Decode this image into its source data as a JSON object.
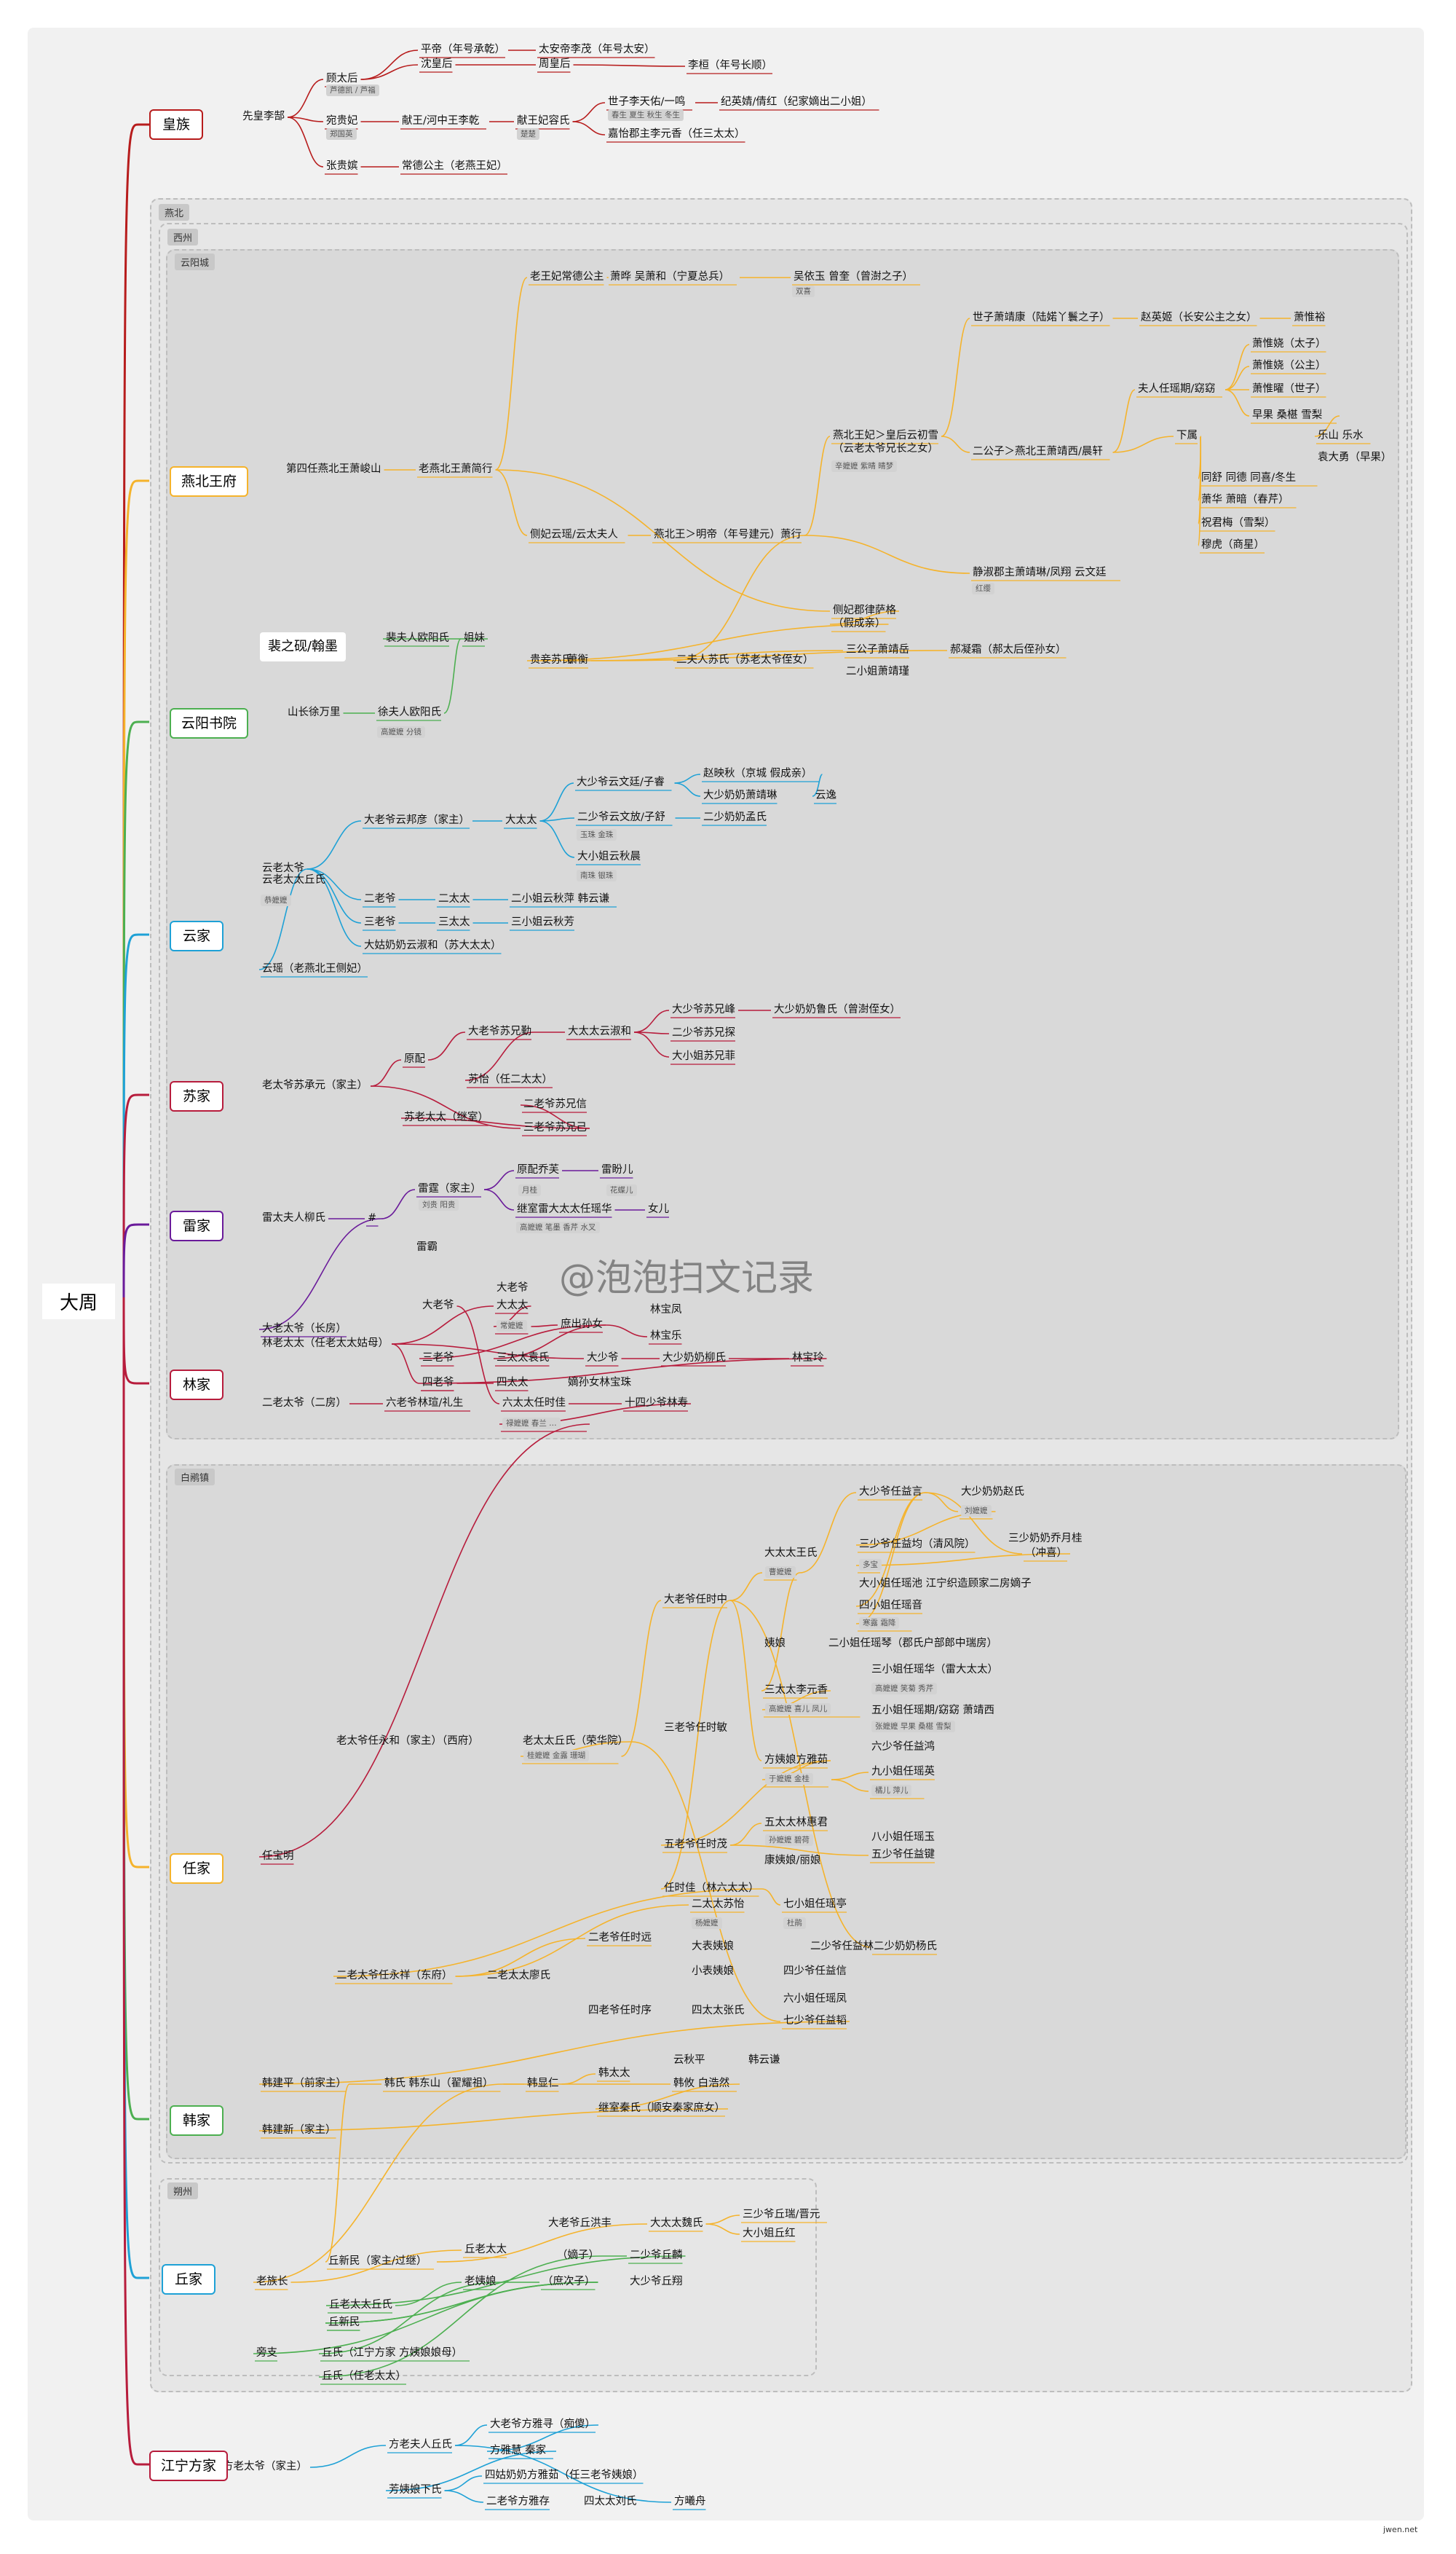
{
  "root": "大周",
  "regions": {
    "yanbei": "燕北",
    "xizhou": "西州",
    "yunyang": "云阳城",
    "baiheng": "白鹇镇",
    "shuozhou": "朔州"
  },
  "special_box": "裴之砚/翰墨",
  "watermark": "@泡泡扫文记录",
  "corner_mark": "jwen.net",
  "families": {
    "huangzu": "皇族",
    "yanbei": "燕北王府",
    "yunyang": "云阳书院",
    "yun": "云家",
    "su": "苏家",
    "lei": "雷家",
    "lin": "林家",
    "ren": "任家",
    "han": "韩家",
    "qiu": "丘家",
    "fang": "江宁方家"
  },
  "colors": {
    "huangzu": "#b71c1c",
    "yanbei": "#f5b32b",
    "yunyang": "#4caf50",
    "yun": "#1ea1d6",
    "su": "#b71c3c",
    "lei": "#6a1b9a",
    "lin": "#b71c3c",
    "ren": "#f5b32b",
    "han": "#4caf50",
    "qiu": "#1ea1d6",
    "fang": "#b71c3c"
  },
  "nodes": [
    "先皇李郜",
    "顾太后",
    "芦德凯 / 芦福",
    "平帝（年号承乾）",
    "沈皇后",
    "太安帝李茂（年号太安）",
    "周皇后",
    "李桓（年号长顺）",
    "宛贵妃",
    "郑国英",
    "献王/河中王李乾",
    "献王妃容氏",
    "楚楚",
    "世子李天佑/一鸣",
    "纪英婧/倩红（纪家嫡出二小姐）",
    "春生 夏生 秋生 冬生",
    "嘉怡郡主李元香（任三太太）",
    "张贵嫔",
    "常德公主（老燕王妃）",
    "老王妃常德公主",
    "萧晔 吴萧和（宁夏总兵）",
    "吴依玉 曾奎（曾澍之子）",
    "双喜",
    "第四任燕北王萧峻山",
    "老燕北王萧简行",
    "世子萧靖康（陆婼丫鬟之子）",
    "赵英姬（长安公主之女）",
    "萧惟裕",
    "萧惟娆（太子）",
    "萧惟娆（公主）",
    "夫人任瑶期/窈窈",
    "萧惟曜（世子）",
    "早果 桑椹 雪梨",
    "下属",
    "乐山 乐水",
    "袁大勇（早果）",
    "燕北王妃＞皇后云初雪",
    "（云老太爷兄长之女）",
    "辛嬷嬷 紫晴 晴梦",
    "二公子＞燕北王萧靖西/晨轩",
    "侧妃云瑶/云太夫人",
    "燕北王＞明帝（年号建元）萧行",
    "同舒 同德 同喜/冬生",
    "萧华 萧暗（春芹）",
    "祝君梅（雪梨）",
    "穆虎（商星）",
    "静淑郡主萧靖琳/凤翔 云文廷",
    "红缨",
    "侧妃郡律萨格",
    "（假成亲）",
    "贵妾苏氏",
    "萧衡",
    "二夫人苏氏（苏老太爷侄女）",
    "三公子萧靖岳",
    "郝凝霜（郝太后侄孙女）",
    "二小姐萧靖瑾",
    "裴夫人欧阳氏",
    "姐妹",
    "山长徐万里",
    "徐夫人欧阳氏",
    "高嬷嬷 分镜",
    "云老太爷",
    "云老太太丘氏",
    "恭嬷嬷",
    "大老爷云邦彦（家主）",
    "大太太",
    "大少爷云文廷/子睿",
    "赵映秋（京城 假成亲）",
    "大少奶奶萧靖琳",
    "云逸",
    "二少爷云文放/子舒",
    "二少奶奶孟氏",
    "玉珠 金珠",
    "大小姐云秋晨",
    "南珠 银珠",
    "二老爷",
    "二太太",
    "二小姐云秋萍 韩云谦",
    "三老爷",
    "三太太",
    "三小姐云秋芳",
    "大姑奶奶云淑和（苏大太太）",
    "云瑶（老燕北王侧妃）",
    "老太爷苏承元（家主）",
    "原配",
    "大老爷苏兄勤",
    "大太太云淑和",
    "大少爷苏兄峰",
    "大少奶奶鲁氏（曾澍侄女）",
    "二少爷苏兄探",
    "大小姐苏兄菲",
    "苏怡（任二太太）",
    "苏老太太（继室）",
    "二老爷苏兄信",
    "三老爷苏兄己",
    "雷太夫人柳氏",
    "#",
    "雷霆（家主）",
    "刘贵 阳贵",
    "原配乔芙",
    "雷盼儿",
    "月桂",
    "花蝶儿",
    "继室雷大太太任瑶华",
    "女儿",
    "高嬷嬷 笔墨 香芹 水叉",
    "雷霸",
    "大老太爷（长房）",
    "林老太太（任老太太姑母）",
    "大老爷",
    "大太太",
    "常嬷嬷",
    "大老爷",
    "林宝凤",
    "庶出孙女",
    "林宝乐",
    "三老爷",
    "三太太袁氏",
    "大少爷",
    "大少奶奶柳氏",
    "林宝玲",
    "四老爷",
    "四太太",
    "嫡孙女林宝珠",
    "二老太爷（二房）",
    "六老爷林瑄/礼生",
    "六太太任时佳",
    "十四少爷林寿",
    "禄嬷嬷 春兰 …",
    "任宝明",
    "老太爷任永和（家主）（西府）",
    "老太太丘氏（荣华院）",
    "桂嬷嬷 金露 珊瑚",
    "大老爷任时中",
    "大太太王氏",
    "曹嬷嬷",
    "大少爷任益言",
    "大少奶奶赵氏",
    "刘嬷嬷",
    "三少爷任益均（清风院）",
    "三少奶奶乔月桂",
    "（冲喜）",
    "多宝",
    "大小姐任瑶池 江宁织造顾家二房嫡子",
    "四小姐任瑶音",
    "寒露 霜降",
    "姨娘",
    "二小姐任瑶琴（郡氏户部郎中瑞房）",
    "三老爷任时敏",
    "三太太李元香",
    "高嬷嬷 喜儿 凤儿",
    "三小姐任瑶华（雷大太太）",
    "高嬷嬷 笑菊 秀芹",
    "五小姐任瑶期/窈窈 萧靖西",
    "张嬷嬷 早果 桑椹 雪梨",
    "方姨娘方雅茹",
    "于嬷嬷 金桂",
    "六少爷任益鸿",
    "九小姐任瑶英",
    "橘儿 萍儿",
    "五老爷任时茂",
    "五太太林惠君",
    "孙嬷嬷 碧荷",
    "五少爷任益键",
    "八小姐任瑶玉",
    "康姨娘/丽娘",
    "任时佳（林六太太）",
    "二老太爷任永祥（东府）",
    "二老太太廖氏",
    "二老爷任时远",
    "二太太苏怡",
    "七小姐任瑶亭",
    "杨嬷嬷",
    "杜鹃",
    "大表姨娘",
    "二少爷任益林",
    "二少奶奶杨氏",
    "小表姨娘",
    "四少爷任益信",
    "四老爷任时序",
    "四太太张氏",
    "六小姐任瑶凤",
    "七少爷任益韬",
    "韩建平（前家主）",
    "韩氏 韩东山（翟耀祖）",
    "韩显仁",
    "韩太太",
    "韩云谦",
    "云秋平",
    "韩攸 白浩然",
    "继室秦氏（顺安秦家庶女）",
    "韩建新（家主）",
    "老族长",
    "丘新民（家主/过继）",
    "丘老太太",
    "大老爷丘洪丰",
    "大太太魏氏",
    "三少爷丘瑞/晋元",
    "大小姐丘红",
    "（嫡子）",
    "二少爷丘麟",
    "丘老太太丘氏",
    "老姨娘",
    "（庶次子）",
    "大少爷丘翔",
    "丘新民",
    "旁支",
    "丘氏（江宁方家 方姨娘娘母）",
    "丘氏（任老太太）",
    "方老太爷（家主）",
    "方老夫人丘氏",
    "大老爷方雅寻（痴傻）",
    "方雅慧 秦家",
    "芳姨娘下氏",
    "四姑奶奶方雅茹（任三老爷姨娘）",
    "二老爷方雅存",
    "四太太刘氏",
    "方曦舟"
  ]
}
